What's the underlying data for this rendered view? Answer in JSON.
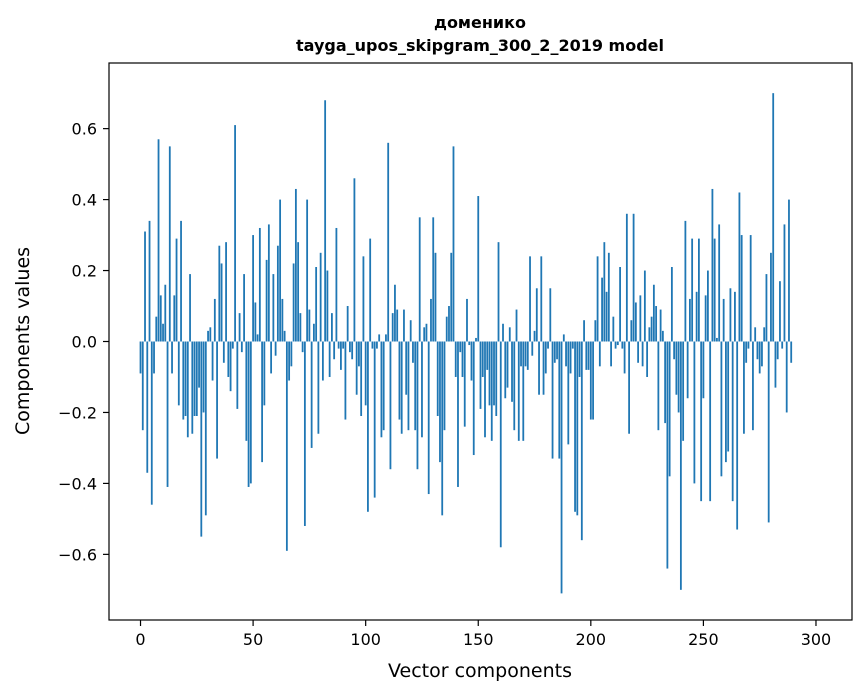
{
  "chart_data": {
    "type": "bar",
    "title": "доменико",
    "subtitle": "tayga_upos_skipgram_300_2_2019 model",
    "xlabel": "Vector components",
    "ylabel": "Components values",
    "xlim": [
      -14,
      316
    ],
    "ylim": [
      -0.785,
      0.785
    ],
    "x_ticks": [
      0,
      50,
      100,
      150,
      200,
      250,
      300
    ],
    "y_ticks": [
      -0.6,
      -0.4,
      -0.2,
      0.0,
      0.2,
      0.4,
      0.6
    ],
    "y_tick_labels": [
      "−0.6",
      "−0.4",
      "−0.2",
      "0.0",
      "0.2",
      "0.4",
      "0.6"
    ],
    "bar_color": "#1f77b4",
    "grid": false,
    "values": [
      -0.09,
      -0.25,
      0.31,
      -0.37,
      0.34,
      -0.46,
      -0.09,
      0.07,
      0.57,
      0.13,
      0.05,
      0.16,
      -0.41,
      0.55,
      -0.09,
      0.13,
      0.29,
      -0.18,
      0.34,
      -0.22,
      -0.21,
      -0.27,
      0.19,
      -0.26,
      -0.21,
      -0.21,
      -0.13,
      -0.55,
      -0.2,
      -0.49,
      0.03,
      0.04,
      -0.11,
      0.12,
      -0.33,
      0.27,
      0.22,
      -0.06,
      0.28,
      -0.1,
      -0.14,
      -0.02,
      0.61,
      -0.19,
      0.08,
      -0.03,
      0.19,
      -0.28,
      -0.41,
      -0.4,
      0.3,
      0.11,
      0.02,
      0.32,
      -0.34,
      -0.18,
      0.23,
      0.33,
      -0.09,
      0.19,
      -0.04,
      0.27,
      0.4,
      0.12,
      0.03,
      -0.59,
      -0.11,
      -0.07,
      0.22,
      0.43,
      0.28,
      0.08,
      -0.03,
      -0.52,
      0.4,
      0.09,
      -0.3,
      0.05,
      0.21,
      -0.26,
      0.25,
      -0.11,
      0.68,
      0.2,
      -0.1,
      0.08,
      -0.05,
      0.32,
      -0.02,
      -0.08,
      -0.02,
      -0.22,
      0.1,
      -0.03,
      -0.05,
      0.46,
      -0.15,
      -0.07,
      -0.21,
      0.24,
      -0.18,
      -0.48,
      0.29,
      -0.02,
      -0.44,
      -0.02,
      0.02,
      -0.27,
      -0.25,
      0.02,
      0.56,
      -0.36,
      0.08,
      0.16,
      0.09,
      -0.22,
      -0.26,
      0.09,
      -0.15,
      -0.25,
      0.06,
      -0.06,
      -0.25,
      -0.36,
      0.35,
      -0.27,
      0.04,
      0.05,
      -0.43,
      0.12,
      0.35,
      0.25,
      -0.21,
      -0.34,
      -0.49,
      -0.25,
      0.07,
      0.1,
      0.25,
      0.55,
      -0.1,
      -0.41,
      -0.03,
      -0.1,
      -0.24,
      0.12,
      -0.01,
      -0.11,
      -0.32,
      0.01,
      0.41,
      -0.19,
      -0.1,
      -0.27,
      -0.08,
      -0.18,
      -0.28,
      -0.18,
      -0.21,
      0.28,
      -0.58,
      0.05,
      -0.16,
      -0.13,
      0.04,
      -0.17,
      -0.25,
      0.09,
      -0.28,
      -0.07,
      -0.28,
      -0.07,
      -0.08,
      0.24,
      -0.04,
      0.03,
      0.15,
      -0.15,
      0.24,
      -0.15,
      -0.09,
      -0.02,
      0.15,
      -0.33,
      -0.06,
      -0.05,
      -0.33,
      -0.71,
      0.02,
      -0.07,
      -0.29,
      -0.09,
      -0.02,
      -0.48,
      -0.49,
      -0.1,
      -0.56,
      0.06,
      -0.08,
      -0.08,
      -0.22,
      -0.22,
      0.06,
      0.24,
      -0.07,
      0.18,
      0.28,
      0.14,
      0.25,
      -0.07,
      0.07,
      -0.02,
      -0.01,
      0.21,
      -0.02,
      -0.09,
      0.36,
      -0.26,
      0.06,
      0.36,
      0.11,
      -0.06,
      0.13,
      -0.07,
      0.2,
      -0.1,
      0.04,
      0.07,
      0.16,
      0.1,
      -0.25,
      0.09,
      0.03,
      -0.23,
      -0.64,
      -0.38,
      0.21,
      -0.05,
      -0.15,
      -0.2,
      -0.7,
      -0.28,
      0.34,
      -0.16,
      0.12,
      0.29,
      -0.4,
      0.14,
      0.29,
      -0.45,
      -0.16,
      0.13,
      0.2,
      -0.45,
      0.43,
      0.29,
      0.01,
      0.33,
      -0.38,
      0.12,
      -0.34,
      -0.31,
      0.15,
      -0.45,
      0.14,
      -0.53,
      0.42,
      0.3,
      -0.26,
      -0.06,
      -0.02,
      0.3,
      -0.25,
      0.04,
      -0.05,
      -0.09,
      -0.07,
      0.04,
      0.19,
      -0.51,
      0.25,
      0.7,
      -0.13,
      -0.05,
      0.17,
      -0.02,
      0.33,
      -0.2,
      0.4,
      -0.06
    ]
  }
}
